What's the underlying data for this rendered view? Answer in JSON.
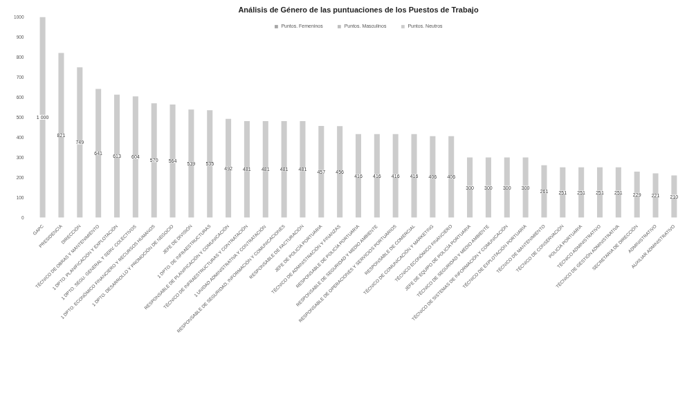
{
  "chart_data": {
    "type": "bar",
    "title": "Análisis de Género de las puntuaciones de los Puestos de Trabajo",
    "categories": [
      "GAPC",
      "PRESIDENCIA",
      "DIRECCIÓN",
      "TÉCNICO DE OBRAS Y MANTENIMIENTO",
      "1 DPTO. PLANIFICACIÓN Y EXPLOTACIÓN",
      "1 DPTO. SEGU. GENERAL Y SERV. COLECTIVOS",
      "1 DPTO. ECONÓMICO FINANCIERO Y RECURSOS HUMANOS",
      "1 DPTO. DESARROLLO Y PROMOCIÓN DE NEGOCIO",
      "JEFE DE DIVISIÓN",
      "1 DPTO. DE INFRAESTRUCTURAS",
      "RESPONSABLE DE PLANIFICACIÓN Y COMUNICACIÓN",
      "TÉCNICO DE INFRAESTRUCTURAS Y CONTRATACIÓN",
      "1 UNIDAD ADMINISTRATIVA Y CONTRATACIÓN",
      "RESPONSABLE DE SEGURIDAD, INFORMACIÓN Y COMUNICACIONES",
      "RESPONSABLE DE FACTURACIÓN",
      "JEFE DE POLICÍA PORTUARIA",
      "TÉCNICO DE ADMINISTRACIÓN Y FINANZAS",
      "RESPONSABLE DE POLICÍA PORTUARIA",
      "RESPONSABLE DE SEGURIDAD Y MEDIO AMBIENTE",
      "RESPONSABLE DE OPERACIONES Y SERVICIOS PORTUARIOS",
      "RESPONSABLE DE COMERCIAL",
      "TÉCNICO DE COMUNICACIÓN Y MARKETING",
      "TÉCNICO ECONÓMICO FINANCIERO",
      "JEFE DE EQUIPO DE POLICÍA PORTUARIA",
      "TÉCNICO DE SEGURIDAD Y MEDIO AMBIENTE",
      "TÉCNICO DE SISTEMAS DE INFORMACIÓN Y COMUNICACIÓN",
      "TÉCNICO DE EXPLOTACIÓN PORTUARIA",
      "TÉCNICO DE MANTENIMIENTO",
      "TÉCNICO DE CONSERVACIÓN",
      "POLICÍA PORTUARIA",
      "TÉCNICO ADMINISTRATIVO",
      "TÉCNICO DE GESTIÓN ADMINISTRATIVA",
      "SECRETARIA DE DIRECCIÓN",
      "ADMINISTRATIVO",
      "AUXILIAR ADMINISTRATIVO"
    ],
    "series": [
      {
        "name": "Puntos. Femeninos",
        "color": "#a6a6a6",
        "values": [
          null,
          null,
          null,
          null,
          null,
          null,
          null,
          null,
          null,
          null,
          null,
          null,
          null,
          null,
          null,
          null,
          null,
          null,
          null,
          null,
          null,
          null,
          null,
          null,
          null,
          null,
          null,
          null,
          null,
          null,
          null,
          null,
          null,
          null,
          null
        ]
      },
      {
        "name": "Puntos. Masculinos",
        "color": "#bfbfbf",
        "values": [
          null,
          null,
          null,
          null,
          null,
          null,
          null,
          null,
          null,
          null,
          null,
          null,
          null,
          null,
          null,
          null,
          null,
          null,
          null,
          null,
          null,
          null,
          null,
          null,
          null,
          null,
          null,
          null,
          null,
          null,
          null,
          null,
          null,
          null,
          null
        ]
      },
      {
        "name": "Puntos. Neutros",
        "color": "#cccccc",
        "values": [
          1000,
          821,
          749,
          641,
          613,
          604,
          570,
          564,
          539,
          535,
          492,
          481,
          481,
          481,
          481,
          457,
          456,
          416,
          416,
          416,
          416,
          406,
          406,
          300,
          300,
          300,
          300,
          261,
          251,
          251,
          251,
          251,
          229,
          221,
          210
        ]
      }
    ],
    "value_labels": [
      "1 000",
      "821",
      "749",
      "641",
      "613",
      "604",
      "570",
      "564",
      "539",
      "535",
      "492",
      "481",
      "481",
      "481",
      "481",
      "457",
      "456",
      "416",
      "416",
      "416",
      "416",
      "406",
      "406",
      "300",
      "300",
      "300",
      "300",
      "261",
      "251",
      "251",
      "251",
      "251",
      "229",
      "221",
      "210"
    ],
    "ylim": [
      0,
      1000
    ],
    "yticks": [
      0,
      100,
      200,
      300,
      400,
      500,
      600,
      700,
      800,
      900,
      1000
    ],
    "grid": false,
    "legend": "top"
  }
}
